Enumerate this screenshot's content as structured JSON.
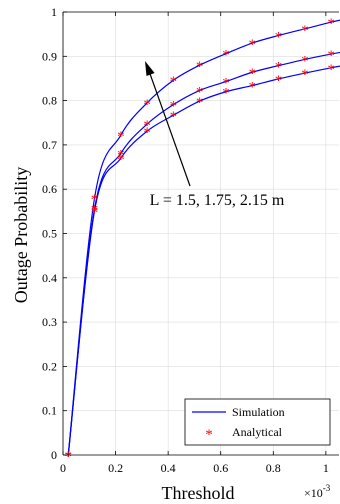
{
  "chart_data": {
    "type": "line",
    "title": "",
    "xlabel": "Threshold",
    "x_multiplier": "×10",
    "x_exponent": "-3",
    "ylabel": "Outage Probability",
    "xlim": [
      0,
      1.05
    ],
    "ylim": [
      0,
      1
    ],
    "x_ticks": [
      0,
      0.2,
      0.4,
      0.6,
      0.8,
      1
    ],
    "x_tick_labels": [
      "0",
      "0.2",
      "0.4",
      "0.6",
      "0.8",
      "1"
    ],
    "y_ticks": [
      0,
      0.1,
      0.2,
      0.3,
      0.4,
      0.5,
      0.6,
      0.7,
      0.8,
      0.9,
      1
    ],
    "y_tick_labels": [
      "0",
      "0.1",
      "0.2",
      "0.3",
      "0.4",
      "0.5",
      "0.6",
      "0.7",
      "0.8",
      "0.9",
      "1"
    ],
    "grid": true,
    "legend_position": "bottom-right",
    "x": [
      0.02,
      0.12,
      0.22,
      0.32,
      0.42,
      0.52,
      0.62,
      0.72,
      0.82,
      0.92,
      1.02
    ],
    "series": [
      {
        "values": [
          0,
          0.58,
          0.722,
          0.795,
          0.846,
          0.88,
          0.906,
          0.93,
          0.947,
          0.962,
          0.977
        ]
      },
      {
        "values": [
          0,
          0.556,
          0.681,
          0.747,
          0.791,
          0.823,
          0.843,
          0.864,
          0.879,
          0.893,
          0.905
        ]
      },
      {
        "values": [
          0,
          0.551,
          0.67,
          0.731,
          0.767,
          0.799,
          0.82,
          0.834,
          0.849,
          0.862,
          0.874
        ]
      }
    ],
    "legend": {
      "simulation_label": "Simulation",
      "analytical_label": "Analytical"
    },
    "annotation": {
      "text": "L = 1.5, 1.75, 2.15 m"
    },
    "colors": {
      "simulation": "#0000ff",
      "analytical": "#ff0000",
      "grid": "#dcdcdc",
      "axes": "#000000"
    }
  }
}
